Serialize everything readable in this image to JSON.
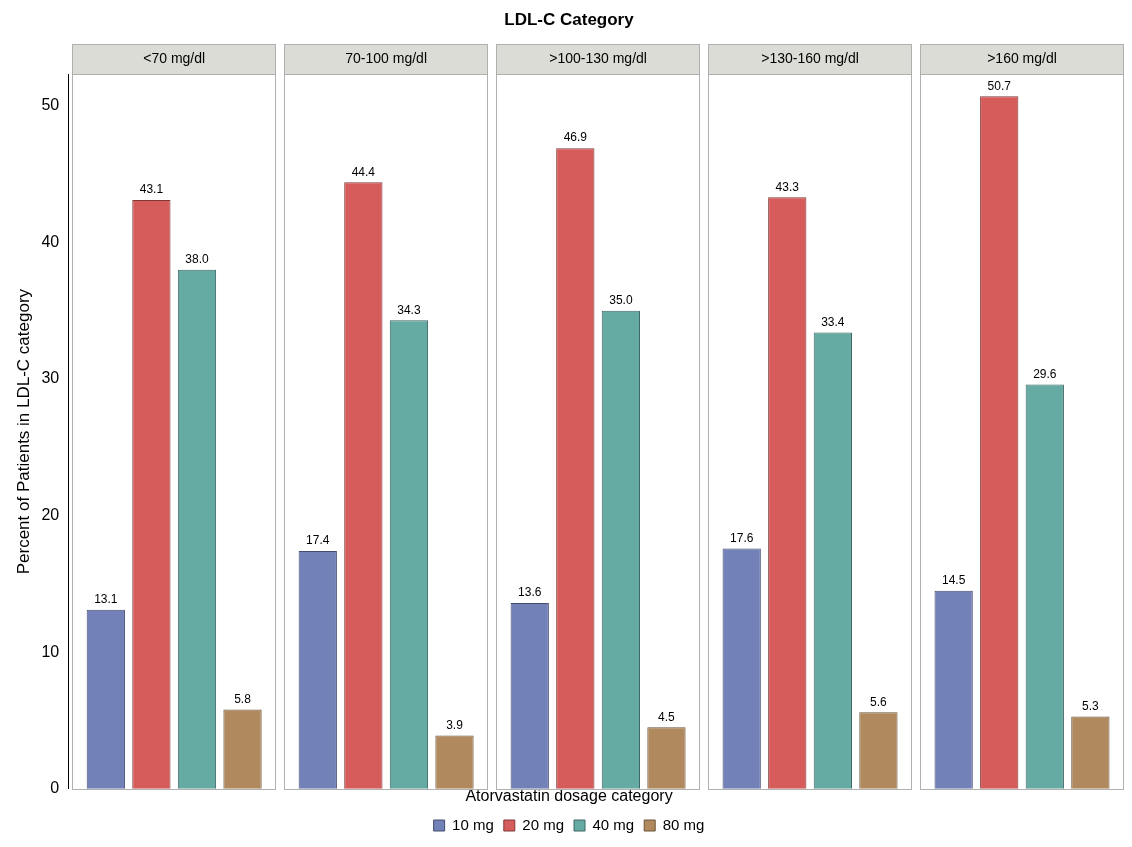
{
  "chart_data": {
    "type": "bar",
    "title": "LDL-C Category",
    "ylabel": "Percent of Patients in LDL-C category",
    "legend_title": "Atorvastatin dosage category",
    "legend": "bottom",
    "grid": false,
    "categories": [
      "<70 mg/dl",
      "70-100 mg/dl",
      ">100-130 mg/dl",
      ">130-160 mg/dl",
      ">160 mg/dl"
    ],
    "ylim": [
      0,
      52.3
    ],
    "yticks": [
      0,
      10,
      20,
      30,
      40,
      50
    ],
    "series": [
      {
        "name": "10 mg",
        "color": "#7381b9",
        "values": [
          13.1,
          17.4,
          13.6,
          17.6,
          14.5
        ],
        "value_labels": [
          "13.1",
          "17.4",
          "13.6",
          "17.6",
          "14.5"
        ]
      },
      {
        "name": "20 mg",
        "color": "#d65b5b",
        "values": [
          43.1,
          44.4,
          46.9,
          43.3,
          50.7
        ],
        "value_labels": [
          "43.1",
          "44.4",
          "46.9",
          "43.3",
          "50.7"
        ]
      },
      {
        "name": "40 mg",
        "color": "#66aba3",
        "values": [
          38.0,
          34.3,
          35.0,
          33.4,
          29.6
        ],
        "value_labels": [
          "38.0",
          "34.3",
          "35.0",
          "33.4",
          "29.6"
        ]
      },
      {
        "name": "80 mg",
        "color": "#b08a5e",
        "values": [
          5.8,
          3.9,
          4.5,
          5.6,
          5.3
        ],
        "value_labels": [
          "5.8",
          "3.9",
          "4.5",
          "5.6",
          "5.3"
        ]
      }
    ]
  }
}
